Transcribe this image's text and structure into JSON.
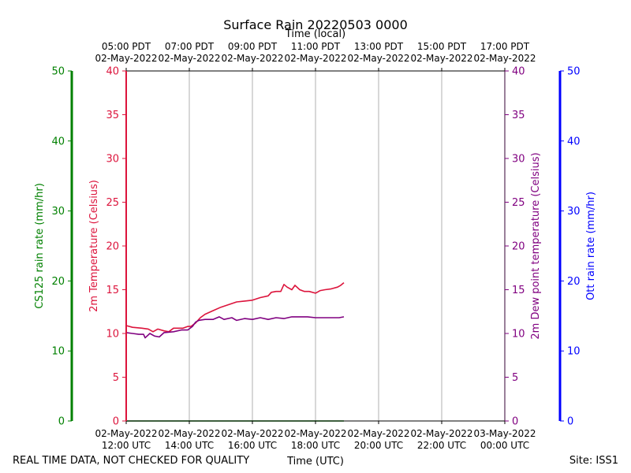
{
  "chart_data": {
    "type": "line",
    "title": "Surface Rain 20220503 0000",
    "x_top_label": "Time (local)",
    "x_bottom_label": "Time (UTC)",
    "footer_left": "REAL TIME DATA, NOT CHECKED FOR QUALITY",
    "footer_right": "Site: ISS1",
    "x_hours_range": [
      12,
      24
    ],
    "bottom_ticks": [
      {
        "hour": 12,
        "l1": "02-May-2022",
        "l2": "12:00 UTC"
      },
      {
        "hour": 14,
        "l1": "02-May-2022",
        "l2": "14:00 UTC"
      },
      {
        "hour": 16,
        "l1": "02-May-2022",
        "l2": "16:00 UTC"
      },
      {
        "hour": 18,
        "l1": "02-May-2022",
        "l2": "18:00 UTC"
      },
      {
        "hour": 20,
        "l1": "02-May-2022",
        "l2": "20:00 UTC"
      },
      {
        "hour": 22,
        "l1": "02-May-2022",
        "l2": "22:00 UTC"
      },
      {
        "hour": 24,
        "l1": "03-May-2022",
        "l2": "00:00 UTC"
      }
    ],
    "top_ticks": [
      {
        "hour": 12,
        "l1": "05:00 PDT",
        "l2": "02-May-2022"
      },
      {
        "hour": 14,
        "l1": "07:00 PDT",
        "l2": "02-May-2022"
      },
      {
        "hour": 16,
        "l1": "09:00 PDT",
        "l2": "02-May-2022"
      },
      {
        "hour": 18,
        "l1": "11:00 PDT",
        "l2": "02-May-2022"
      },
      {
        "hour": 20,
        "l1": "13:00 PDT",
        "l2": "02-May-2022"
      },
      {
        "hour": 22,
        "l1": "15:00 PDT",
        "l2": "02-May-2022"
      },
      {
        "hour": 24,
        "l1": "17:00 PDT",
        "l2": "02-May-2022"
      }
    ],
    "axes": {
      "cs125": {
        "label": "CS125 rain rate (mm/hr)",
        "ylim": [
          0,
          50
        ],
        "ticks": [
          0,
          10,
          20,
          30,
          40,
          50
        ],
        "color": "#008000"
      },
      "temp": {
        "label": "2m Temperature (Celsius)",
        "ylim": [
          0,
          40
        ],
        "ticks": [
          0,
          5,
          10,
          15,
          20,
          25,
          30,
          35,
          40
        ],
        "color": "#dc143c"
      },
      "dew": {
        "label": "2m Dew point temperature (Celsius)",
        "ylim": [
          0,
          40
        ],
        "ticks": [
          0,
          5,
          10,
          15,
          20,
          25,
          30,
          35,
          40
        ],
        "color": "#800080"
      },
      "ott": {
        "label": "Ott rain rate (mm/hr)",
        "ylim": [
          0,
          50
        ],
        "ticks": [
          0,
          10,
          20,
          30,
          40,
          50
        ],
        "color": "#0000ff"
      }
    },
    "series": [
      {
        "name": "2m Temperature",
        "axis": "temp",
        "color": "#dc143c",
        "points": [
          [
            12.0,
            10.9
          ],
          [
            12.2,
            10.7
          ],
          [
            12.5,
            10.6
          ],
          [
            12.7,
            10.5
          ],
          [
            12.85,
            10.2
          ],
          [
            13.0,
            10.5
          ],
          [
            13.2,
            10.3
          ],
          [
            13.35,
            10.2
          ],
          [
            13.5,
            10.6
          ],
          [
            13.8,
            10.6
          ],
          [
            13.95,
            10.8
          ],
          [
            14.05,
            10.8
          ],
          [
            14.2,
            11.2
          ],
          [
            14.35,
            11.8
          ],
          [
            14.5,
            12.2
          ],
          [
            14.75,
            12.6
          ],
          [
            15.0,
            13.0
          ],
          [
            15.25,
            13.3
          ],
          [
            15.5,
            13.6
          ],
          [
            15.75,
            13.7
          ],
          [
            16.0,
            13.8
          ],
          [
            16.25,
            14.1
          ],
          [
            16.5,
            14.3
          ],
          [
            16.6,
            14.7
          ],
          [
            16.75,
            14.8
          ],
          [
            16.9,
            14.8
          ],
          [
            17.0,
            15.6
          ],
          [
            17.1,
            15.3
          ],
          [
            17.25,
            15.0
          ],
          [
            17.35,
            15.5
          ],
          [
            17.5,
            15.0
          ],
          [
            17.65,
            14.8
          ],
          [
            17.8,
            14.8
          ],
          [
            18.0,
            14.6
          ],
          [
            18.15,
            14.9
          ],
          [
            18.3,
            15.0
          ],
          [
            18.5,
            15.1
          ],
          [
            18.7,
            15.3
          ],
          [
            18.8,
            15.5
          ],
          [
            18.9,
            15.8
          ]
        ]
      },
      {
        "name": "2m Dew point temperature",
        "axis": "dew",
        "color": "#800080",
        "points": [
          [
            12.0,
            10.1
          ],
          [
            12.2,
            10.0
          ],
          [
            12.4,
            9.9
          ],
          [
            12.55,
            9.9
          ],
          [
            12.6,
            9.5
          ],
          [
            12.75,
            10.0
          ],
          [
            12.9,
            9.7
          ],
          [
            13.05,
            9.6
          ],
          [
            13.2,
            10.1
          ],
          [
            13.5,
            10.2
          ],
          [
            13.75,
            10.4
          ],
          [
            13.95,
            10.4
          ],
          [
            14.1,
            10.8
          ],
          [
            14.2,
            11.3
          ],
          [
            14.3,
            11.5
          ],
          [
            14.5,
            11.6
          ],
          [
            14.75,
            11.6
          ],
          [
            14.95,
            11.9
          ],
          [
            15.1,
            11.6
          ],
          [
            15.35,
            11.8
          ],
          [
            15.5,
            11.5
          ],
          [
            15.75,
            11.7
          ],
          [
            16.0,
            11.6
          ],
          [
            16.25,
            11.8
          ],
          [
            16.5,
            11.6
          ],
          [
            16.75,
            11.8
          ],
          [
            17.0,
            11.7
          ],
          [
            17.25,
            11.9
          ],
          [
            17.5,
            11.9
          ],
          [
            17.75,
            11.9
          ],
          [
            18.0,
            11.8
          ],
          [
            18.25,
            11.8
          ],
          [
            18.5,
            11.8
          ],
          [
            18.75,
            11.8
          ],
          [
            18.9,
            11.9
          ]
        ]
      },
      {
        "name": "CS125 rain rate",
        "axis": "cs125",
        "color": "#008000",
        "points": [
          [
            12.0,
            0.0
          ],
          [
            18.9,
            0.0
          ]
        ]
      }
    ]
  }
}
